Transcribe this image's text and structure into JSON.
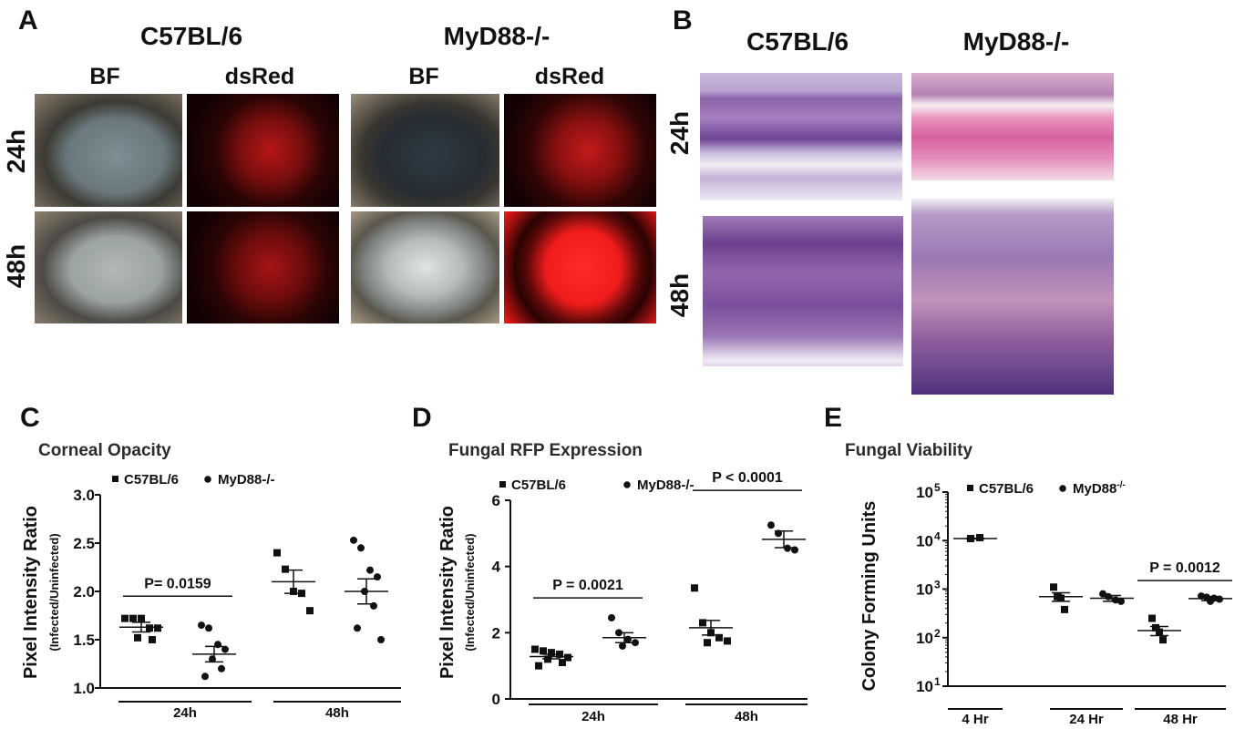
{
  "panel_a": {
    "label": "A",
    "group_headers": [
      "C57BL/6",
      "MyD88-/-"
    ],
    "column_headers": [
      "BF",
      "dsRed",
      "BF",
      "dsRed"
    ],
    "row_labels": [
      "24h",
      "48h"
    ]
  },
  "panel_b": {
    "label": "B",
    "group_headers": [
      "C57BL/6",
      "MyD88-/-"
    ],
    "row_labels": [
      "24h",
      "48h"
    ]
  },
  "colors": {
    "data": "#111111",
    "bf_eye_24_wt": "#6f7f86",
    "bf_eye_24_ko": "#2c3a44",
    "bf_eye_48": "#9ea6a6",
    "dsred_low": "#c01818",
    "dsred_high": "#ff2020",
    "he_pink": "#d6a6c8",
    "he_purple": "#6a3d8c"
  },
  "chart_data": [
    {
      "panel": "C",
      "type": "scatter",
      "title": "Corneal Opacity",
      "ylabel": "Pixel Intensity Ratio",
      "ylabel_sub": "(Infected/Uninfected)",
      "ylim": [
        1.0,
        3.0
      ],
      "yticks": [
        "1.0",
        "1.5",
        "2.0",
        "2.5",
        "3.0"
      ],
      "y_scale": "linear",
      "groups": [
        "24h",
        "48h"
      ],
      "legend": [
        "C57BL/6",
        "MyD88-/-"
      ],
      "series": [
        {
          "name": "C57BL/6",
          "marker": "square",
          "groups": [
            [
              1.72,
              1.72,
              1.72,
              1.62,
              1.62,
              1.52,
              1.5
            ],
            [
              2.4,
              2.23,
              2.0,
              1.98,
              1.8
            ]
          ],
          "means": [
            1.63,
            2.1
          ],
          "sems": [
            0.05,
            0.12
          ]
        },
        {
          "name": "MyD88-/-",
          "marker": "circle",
          "groups": [
            [
              1.65,
              1.62,
              1.45,
              1.4,
              1.3,
              1.2,
              1.12
            ],
            [
              2.53,
              2.45,
              2.22,
              2.15,
              2.0,
              1.85,
              1.62,
              1.5
            ]
          ],
          "means": [
            1.35,
            2.0
          ],
          "sems": [
            0.08,
            0.13
          ]
        }
      ],
      "annotations": [
        {
          "text": "P= 0.0159",
          "y": 1.95
        }
      ]
    },
    {
      "panel": "D",
      "type": "scatter",
      "title": "Fungal RFP Expression",
      "ylabel": "Pixel Intensity Ratio",
      "ylabel_sub": "(Infected/Uninfected)",
      "ylim": [
        0,
        6
      ],
      "yticks": [
        "0",
        "2",
        "4",
        "6"
      ],
      "y_scale": "linear",
      "groups": [
        "24h",
        "48h"
      ],
      "legend": [
        "C57BL/6",
        "MyD88-/-"
      ],
      "series": [
        {
          "name": "C57BL/6",
          "marker": "square",
          "groups": [
            [
              1.5,
              1.45,
              1.4,
              1.35,
              1.25,
              1.2,
              1.1,
              1.0
            ],
            [
              3.35,
              2.3,
              2.0,
              1.85,
              1.75,
              1.7
            ]
          ],
          "means": [
            1.28,
            2.15
          ],
          "sems": [
            0.07,
            0.22
          ]
        },
        {
          "name": "MyD88-/-",
          "marker": "circle",
          "groups": [
            [
              2.45,
              2.0,
              1.8,
              1.7,
              1.6
            ],
            [
              5.25,
              5.0,
              4.55,
              4.5
            ]
          ],
          "means": [
            1.85,
            4.82
          ],
          "sems": [
            0.15,
            0.25
          ]
        }
      ],
      "annotations": [
        {
          "text": "P = 0.0021",
          "y": 3.05
        },
        {
          "text": "P < 0.0001",
          "y": 6.3
        }
      ]
    },
    {
      "panel": "E",
      "type": "scatter",
      "title": "Fungal Viability",
      "ylabel": "Colony Forming Units",
      "ylim": [
        10,
        100000
      ],
      "yticks": [
        "10",
        "10",
        "10",
        "10",
        "10"
      ],
      "ytick_exponents": [
        "1",
        "2",
        "3",
        "4",
        "5"
      ],
      "y_scale": "log",
      "groups": [
        "4 Hr",
        "24 Hr",
        "48 Hr"
      ],
      "legend": [
        "C57BL/6",
        "MyD88"
      ],
      "legend_superscripts": [
        "",
        "-/-"
      ],
      "series": [
        {
          "name": "C57BL/6",
          "marker": "square",
          "groups": [
            [
              11000,
              11500
            ],
            [
              1100,
              700,
              650,
              380
            ],
            [
              250,
              160,
              130,
              90
            ]
          ],
          "means": [
            11000,
            700,
            140
          ],
          "sems": [
            200,
            140,
            30
          ]
        },
        {
          "name": "MyD88-/-",
          "marker": "circle",
          "groups": [
            [],
            [
              800,
              700,
              600,
              560
            ],
            [
              720,
              680,
              650,
              620,
              560
            ]
          ],
          "means": [
            null,
            650,
            640
          ],
          "sems": [
            null,
            90,
            60
          ]
        }
      ],
      "annotations": [
        {
          "text": "P = 0.0012",
          "y": 1500
        }
      ]
    }
  ]
}
